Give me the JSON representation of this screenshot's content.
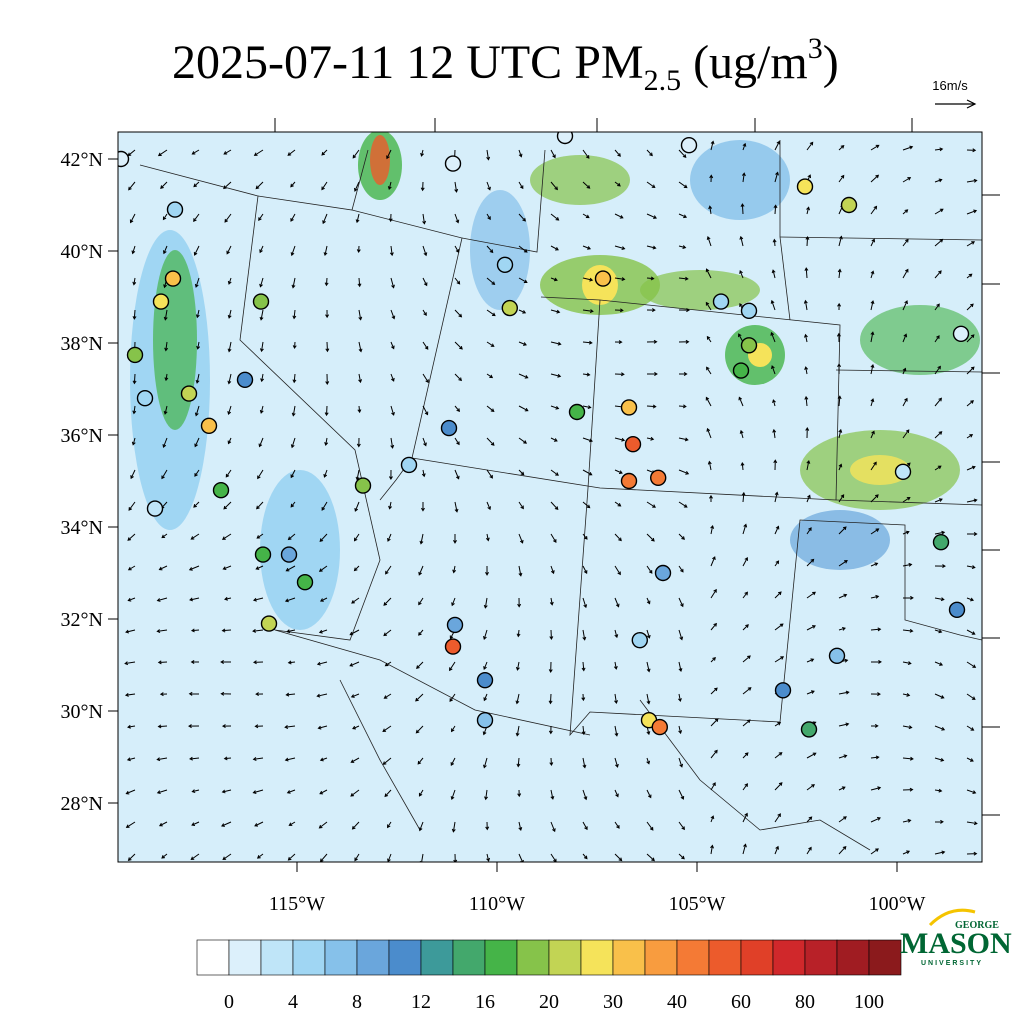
{
  "title": {
    "main": "2025-07-11 12 UTC PM",
    "sub": "2.5",
    "unit": " (ug/m",
    "sup": "3",
    "close": ")"
  },
  "vector_reference": "16m/s",
  "lat_ticks": [
    {
      "value": 42,
      "label": "42°N"
    },
    {
      "value": 40,
      "label": "40°N"
    },
    {
      "value": 38,
      "label": "38°N"
    },
    {
      "value": 36,
      "label": "36°N"
    },
    {
      "value": 34,
      "label": "34°N"
    },
    {
      "value": 32,
      "label": "32°N"
    },
    {
      "value": 30,
      "label": "30°N"
    },
    {
      "value": 28,
      "label": "28°N"
    }
  ],
  "lon_ticks": [
    {
      "value": -115,
      "label": "115°W"
    },
    {
      "value": -110,
      "label": "110°W"
    },
    {
      "value": -105,
      "label": "105°W"
    },
    {
      "value": -100,
      "label": "100°W"
    }
  ],
  "colorbar": {
    "labels": [
      0,
      4,
      8,
      12,
      16,
      20,
      30,
      40,
      60,
      80,
      100
    ],
    "colors": [
      "#ffffff",
      "#dcf0fb",
      "#bfe5f8",
      "#a0d6f3",
      "#86c1ea",
      "#6aa6dc",
      "#4b8ccc",
      "#3d9a9a",
      "#43a86c",
      "#45b448",
      "#86c34a",
      "#c2d454",
      "#f5e35a",
      "#f9c04a",
      "#f89c3f",
      "#f47a35",
      "#ec5b2c",
      "#e04028",
      "#d0282b",
      "#b82128",
      "#a01c22",
      "#8b1a1c"
    ]
  },
  "stations": [
    {
      "lon": -119.05,
      "lat": 37.74,
      "value": 18
    },
    {
      "lon": -118.4,
      "lat": 38.9,
      "value": 28
    },
    {
      "lon": -117.7,
      "lat": 36.9,
      "value": 22
    },
    {
      "lon": -117.2,
      "lat": 36.2,
      "value": 30
    },
    {
      "lon": -116.9,
      "lat": 34.8,
      "value": 17
    },
    {
      "lon": -115.85,
      "lat": 33.4,
      "value": 16
    },
    {
      "lon": -115.7,
      "lat": 31.9,
      "value": 22
    },
    {
      "lon": -114.8,
      "lat": 32.8,
      "value": 17
    },
    {
      "lon": -115.9,
      "lat": 38.9,
      "value": 18
    },
    {
      "lon": -116.3,
      "lat": 37.2,
      "value": 10
    },
    {
      "lon": -118.8,
      "lat": 36.8,
      "value": 5
    },
    {
      "lon": -118.55,
      "lat": 34.4,
      "value": 3
    },
    {
      "lon": -115.2,
      "lat": 33.4,
      "value": 9
    },
    {
      "lon": -112.2,
      "lat": 35.35,
      "value": 4
    },
    {
      "lon": -111.2,
      "lat": 36.15,
      "value": 11
    },
    {
      "lon": -113.35,
      "lat": 34.9,
      "value": 18
    },
    {
      "lon": -109.68,
      "lat": 38.76,
      "value": 20
    },
    {
      "lon": -109.8,
      "lat": 39.7,
      "value": 5
    },
    {
      "lon": -111.05,
      "lat": 31.87,
      "value": 9
    },
    {
      "lon": -111.1,
      "lat": 31.4,
      "value": 55
    },
    {
      "lon": -110.3,
      "lat": 29.8,
      "value": 6
    },
    {
      "lon": -110.3,
      "lat": 30.67,
      "value": 10
    },
    {
      "lon": -107.35,
      "lat": 39.4,
      "value": 30
    },
    {
      "lon": -108.0,
      "lat": 36.5,
      "value": 17
    },
    {
      "lon": -106.7,
      "lat": 36.6,
      "value": 30
    },
    {
      "lon": -106.6,
      "lat": 35.8,
      "value": 50
    },
    {
      "lon": -106.7,
      "lat": 35.0,
      "value": 40
    },
    {
      "lon": -105.97,
      "lat": 35.07,
      "value": 40
    },
    {
      "lon": -105.85,
      "lat": 33.0,
      "value": 9
    },
    {
      "lon": -106.43,
      "lat": 31.54,
      "value": 5
    },
    {
      "lon": -106.2,
      "lat": 29.8,
      "value": 28
    },
    {
      "lon": -105.93,
      "lat": 29.65,
      "value": 45
    },
    {
      "lon": -103.7,
      "lat": 37.95,
      "value": 18
    },
    {
      "lon": -103.9,
      "lat": 37.4,
      "value": 17
    },
    {
      "lon": -103.7,
      "lat": 38.7,
      "value": 5
    },
    {
      "lon": -102.3,
      "lat": 41.4,
      "value": 28
    },
    {
      "lon": -101.2,
      "lat": 41.0,
      "value": 22
    },
    {
      "lon": -98.4,
      "lat": 38.2,
      "value": 1
    },
    {
      "lon": -99.85,
      "lat": 35.2,
      "value": 3
    },
    {
      "lon": -98.9,
      "lat": 33.67,
      "value": 14
    },
    {
      "lon": -98.5,
      "lat": 32.2,
      "value": 10
    },
    {
      "lon": -102.2,
      "lat": 29.6,
      "value": 14
    },
    {
      "lon": -102.85,
      "lat": 30.45,
      "value": 11
    },
    {
      "lon": -101.5,
      "lat": 31.2,
      "value": 6
    },
    {
      "lon": -111.1,
      "lat": 41.9,
      "value": 1
    },
    {
      "lon": -108.3,
      "lat": 42.5,
      "value": 1
    },
    {
      "lon": -105.2,
      "lat": 42.3,
      "value": 1
    },
    {
      "lon": -118.05,
      "lat": 40.9,
      "value": 4
    },
    {
      "lon": -119.4,
      "lat": 42.0,
      "value": 1
    },
    {
      "lon": -118.1,
      "lat": 39.4,
      "value": 32
    },
    {
      "lon": -104.4,
      "lat": 38.9,
      "value": 5
    }
  ],
  "logo": {
    "top": "GEORGE",
    "name": "MASON",
    "bottom": "UNIVERSITY"
  }
}
